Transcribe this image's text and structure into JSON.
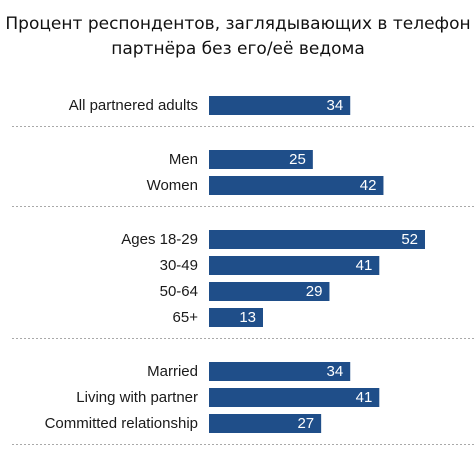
{
  "chart_data": {
    "type": "bar",
    "orientation": "horizontal",
    "title": "Процент респондентов, заглядывающих в телефон партнёра без его/её ведома",
    "xlabel": "",
    "ylabel": "",
    "xlim": [
      0,
      52
    ],
    "grid": false,
    "bar_color": "#1f4e89",
    "groups": [
      {
        "categories": [
          "All partnered adults"
        ],
        "values": [
          34
        ]
      },
      {
        "categories": [
          "Men",
          "Women"
        ],
        "values": [
          25,
          42
        ]
      },
      {
        "categories": [
          "Ages 18-29",
          "30-49",
          "50-64",
          "65+"
        ],
        "values": [
          52,
          41,
          29,
          13
        ]
      },
      {
        "categories": [
          "Married",
          "Living with partner",
          "Committed relationship"
        ],
        "values": [
          34,
          41,
          27
        ]
      }
    ]
  }
}
